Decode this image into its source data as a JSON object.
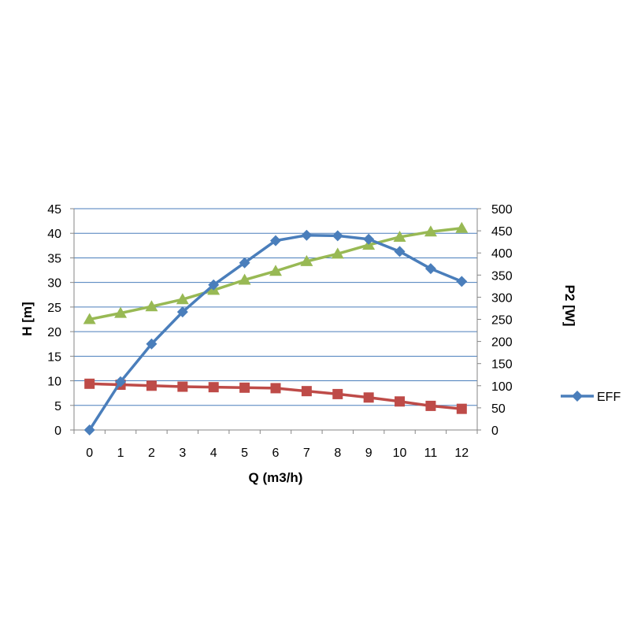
{
  "chart_data": {
    "type": "line",
    "x": [
      0,
      1,
      2,
      3,
      4,
      5,
      6,
      7,
      8,
      9,
      10,
      11,
      12
    ],
    "xlabel": "Q (m3/h)",
    "ylabel": "H [m]",
    "y2label": "P2 [W]",
    "ylim": [
      0,
      45
    ],
    "y2lim": [
      0,
      500
    ],
    "yticks": [
      0,
      5,
      10,
      15,
      20,
      25,
      30,
      35,
      40,
      45
    ],
    "y2ticks": [
      0,
      50,
      100,
      150,
      200,
      250,
      300,
      350,
      400,
      450,
      500
    ],
    "grid": true,
    "legend_position": "right",
    "series": [
      {
        "name": "EFF",
        "axis": "left",
        "marker": "diamond",
        "color": "#4a7ebb",
        "values": [
          0,
          9.8,
          17.5,
          24,
          29.5,
          34,
          38.5,
          39.6,
          39.5,
          38.8,
          36.3,
          32.8,
          30.2
        ]
      },
      {
        "axis": "left",
        "marker": "square",
        "color": "#be4b48",
        "values": [
          9.4,
          9.2,
          9.0,
          8.8,
          8.7,
          8.6,
          8.5,
          7.9,
          7.3,
          6.6,
          5.8,
          4.9,
          4.3
        ]
      },
      {
        "axis": "right",
        "marker": "triangle",
        "color": "#98b954",
        "values": [
          250,
          264,
          279,
          295,
          316,
          339,
          359,
          381,
          398,
          418,
          436,
          448,
          456
        ]
      }
    ]
  }
}
